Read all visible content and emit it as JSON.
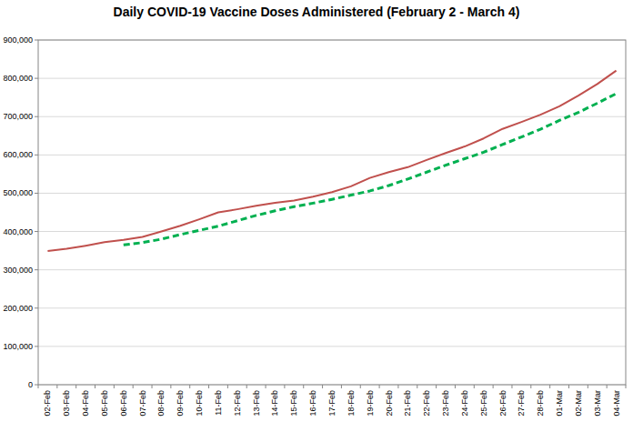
{
  "chart_data": {
    "type": "line",
    "title": "Daily COVID-19 Vaccine Doses Administered (February 2 - March 4)",
    "categories": [
      "02-Feb",
      "03-Feb",
      "04-Feb",
      "05-Feb",
      "06-Feb",
      "07-Feb",
      "08-Feb",
      "09-Feb",
      "10-Feb",
      "11-Feb",
      "12-Feb",
      "13-Feb",
      "14-Feb",
      "15-Feb",
      "16-Feb",
      "17-Feb",
      "18-Feb",
      "19-Feb",
      "20-Feb",
      "21-Feb",
      "22-Feb",
      "23-Feb",
      "24-Feb",
      "25-Feb",
      "26-Feb",
      "27-Feb",
      "28-Feb",
      "01-Mar",
      "02-Mar",
      "03-Mar",
      "04-Mar"
    ],
    "series": [
      {
        "color": "#c0504d",
        "line_style": "solid",
        "values": [
          349000,
          355000,
          363000,
          372000,
          378000,
          386000,
          400000,
          415000,
          432000,
          450000,
          458000,
          467000,
          475000,
          481000,
          491000,
          503000,
          518000,
          540000,
          555000,
          568000,
          587000,
          605000,
          622000,
          643000,
          668000,
          686000,
          705000,
          727000,
          755000,
          785000,
          820000
        ]
      },
      {
        "color": "#00b050",
        "line_style": "dashed",
        "values": [
          null,
          null,
          null,
          null,
          365000,
          371000,
          380000,
          392000,
          403000,
          414000,
          428000,
          442000,
          454000,
          465000,
          474000,
          484000,
          495000,
          506000,
          520000,
          537000,
          555000,
          573000,
          590000,
          607000,
          627000,
          647000,
          667000,
          690000,
          711000,
          735000,
          760000
        ]
      }
    ],
    "ylim": [
      0,
      900000
    ],
    "yticks": [
      0,
      {
        "value": 100000,
        "label": "100,000"
      },
      {
        "value": 200000,
        "label": "200,000"
      },
      {
        "value": 300000,
        "label": "300,000"
      },
      {
        "value": 400000,
        "label": "400,000"
      },
      {
        "value": 500000,
        "label": "500,000"
      },
      {
        "value": 600000,
        "label": "600,000"
      },
      {
        "value": 700000,
        "label": "700,000"
      },
      {
        "value": 800000,
        "label": "800,000"
      },
      {
        "value": 900000,
        "label": "900,000"
      }
    ],
    "grid": true
  }
}
